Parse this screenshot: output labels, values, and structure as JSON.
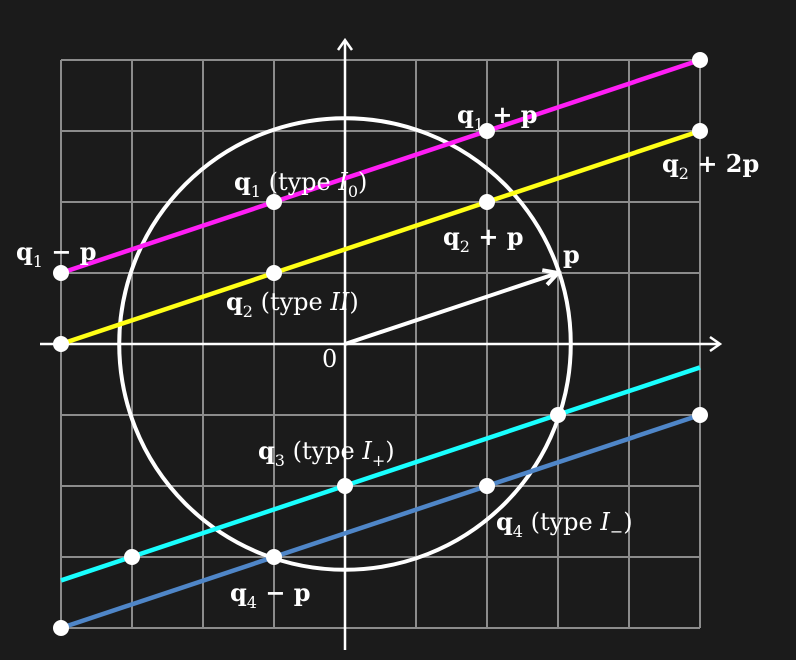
{
  "grid": {
    "x_min": -4,
    "x_max": 5,
    "y_min": -4,
    "y_max": 4
  },
  "colors": {
    "background": "#1b1b1b",
    "grid": "#8c8c8c",
    "axes": "#ffffff",
    "circle": "#ffffff",
    "vector": "#ffffff",
    "dot": "#ffffff"
  },
  "circle": {
    "cx": 0,
    "cy": 0,
    "r": 3.18
  },
  "vector_p": {
    "from": [
      0,
      0
    ],
    "to": [
      3,
      1
    ],
    "label": "p"
  },
  "origin_label": "0",
  "lines": [
    {
      "id": "line-q1",
      "color": "#ff1ef5",
      "from": [
        -4,
        1
      ],
      "to": [
        5,
        4
      ]
    },
    {
      "id": "line-q2",
      "color": "#ffff16",
      "from": [
        -4,
        0
      ],
      "to": [
        5,
        3
      ]
    },
    {
      "id": "line-q3",
      "color": "#19ffff",
      "from": [
        -4,
        -3.33
      ],
      "to": [
        5,
        -0.33
      ]
    },
    {
      "id": "line-q4",
      "color": "#4f86c8",
      "from": [
        -4,
        -4
      ],
      "to": [
        5,
        -1
      ]
    }
  ],
  "points": [
    {
      "name": "q1-minus-p",
      "x": -4,
      "y": 1
    },
    {
      "name": "q1",
      "x": -1,
      "y": 2
    },
    {
      "name": "q1-plus-p",
      "x": 2,
      "y": 3
    },
    {
      "name": "q1-plus-2p",
      "x": 5,
      "y": 4
    },
    {
      "name": "q2-minus-p",
      "x": -4,
      "y": 0
    },
    {
      "name": "q2",
      "x": -1,
      "y": 1
    },
    {
      "name": "q2-plus-p",
      "x": 2,
      "y": 2
    },
    {
      "name": "q2-plus-2p",
      "x": 5,
      "y": 3
    },
    {
      "name": "q3-minus-p",
      "x": -3,
      "y": -3
    },
    {
      "name": "q3",
      "x": 0,
      "y": -2
    },
    {
      "name": "q3-plus-p",
      "x": 3,
      "y": -1
    },
    {
      "name": "q4-minus-2p",
      "x": -4,
      "y": -4
    },
    {
      "name": "q4-minus-p",
      "x": -1,
      "y": -3
    },
    {
      "name": "q4",
      "x": 2,
      "y": -2
    },
    {
      "name": "q4-plus-p",
      "x": 5,
      "y": -1
    }
  ],
  "labels": {
    "q1_minus_p": {
      "base": "q",
      "sub": "1",
      "rest": " − p"
    },
    "q1": {
      "base": "q",
      "sub": "1",
      "pre": " (type ",
      "var": "I",
      "varsub": "0",
      "post": ")"
    },
    "q1_plus_p": {
      "base": "q",
      "sub": "1",
      "rest": " + p"
    },
    "q2": {
      "base": "q",
      "sub": "2",
      "pre": " (type ",
      "var": "II",
      "post": ")"
    },
    "q2_plus_p": {
      "base": "q",
      "sub": "2",
      "rest": " + p"
    },
    "q2_plus_2p": {
      "base": "q",
      "sub": "2",
      "rest": " + 2p"
    },
    "q3": {
      "base": "q",
      "sub": "3",
      "pre": " (type ",
      "var": "I",
      "varsub": "+",
      "post": ")"
    },
    "q4": {
      "base": "q",
      "sub": "4",
      "pre": " (type ",
      "var": "I",
      "varsub": "−",
      "post": ")"
    },
    "q4_minus_p": {
      "base": "q",
      "sub": "4",
      "rest": " − p"
    }
  }
}
